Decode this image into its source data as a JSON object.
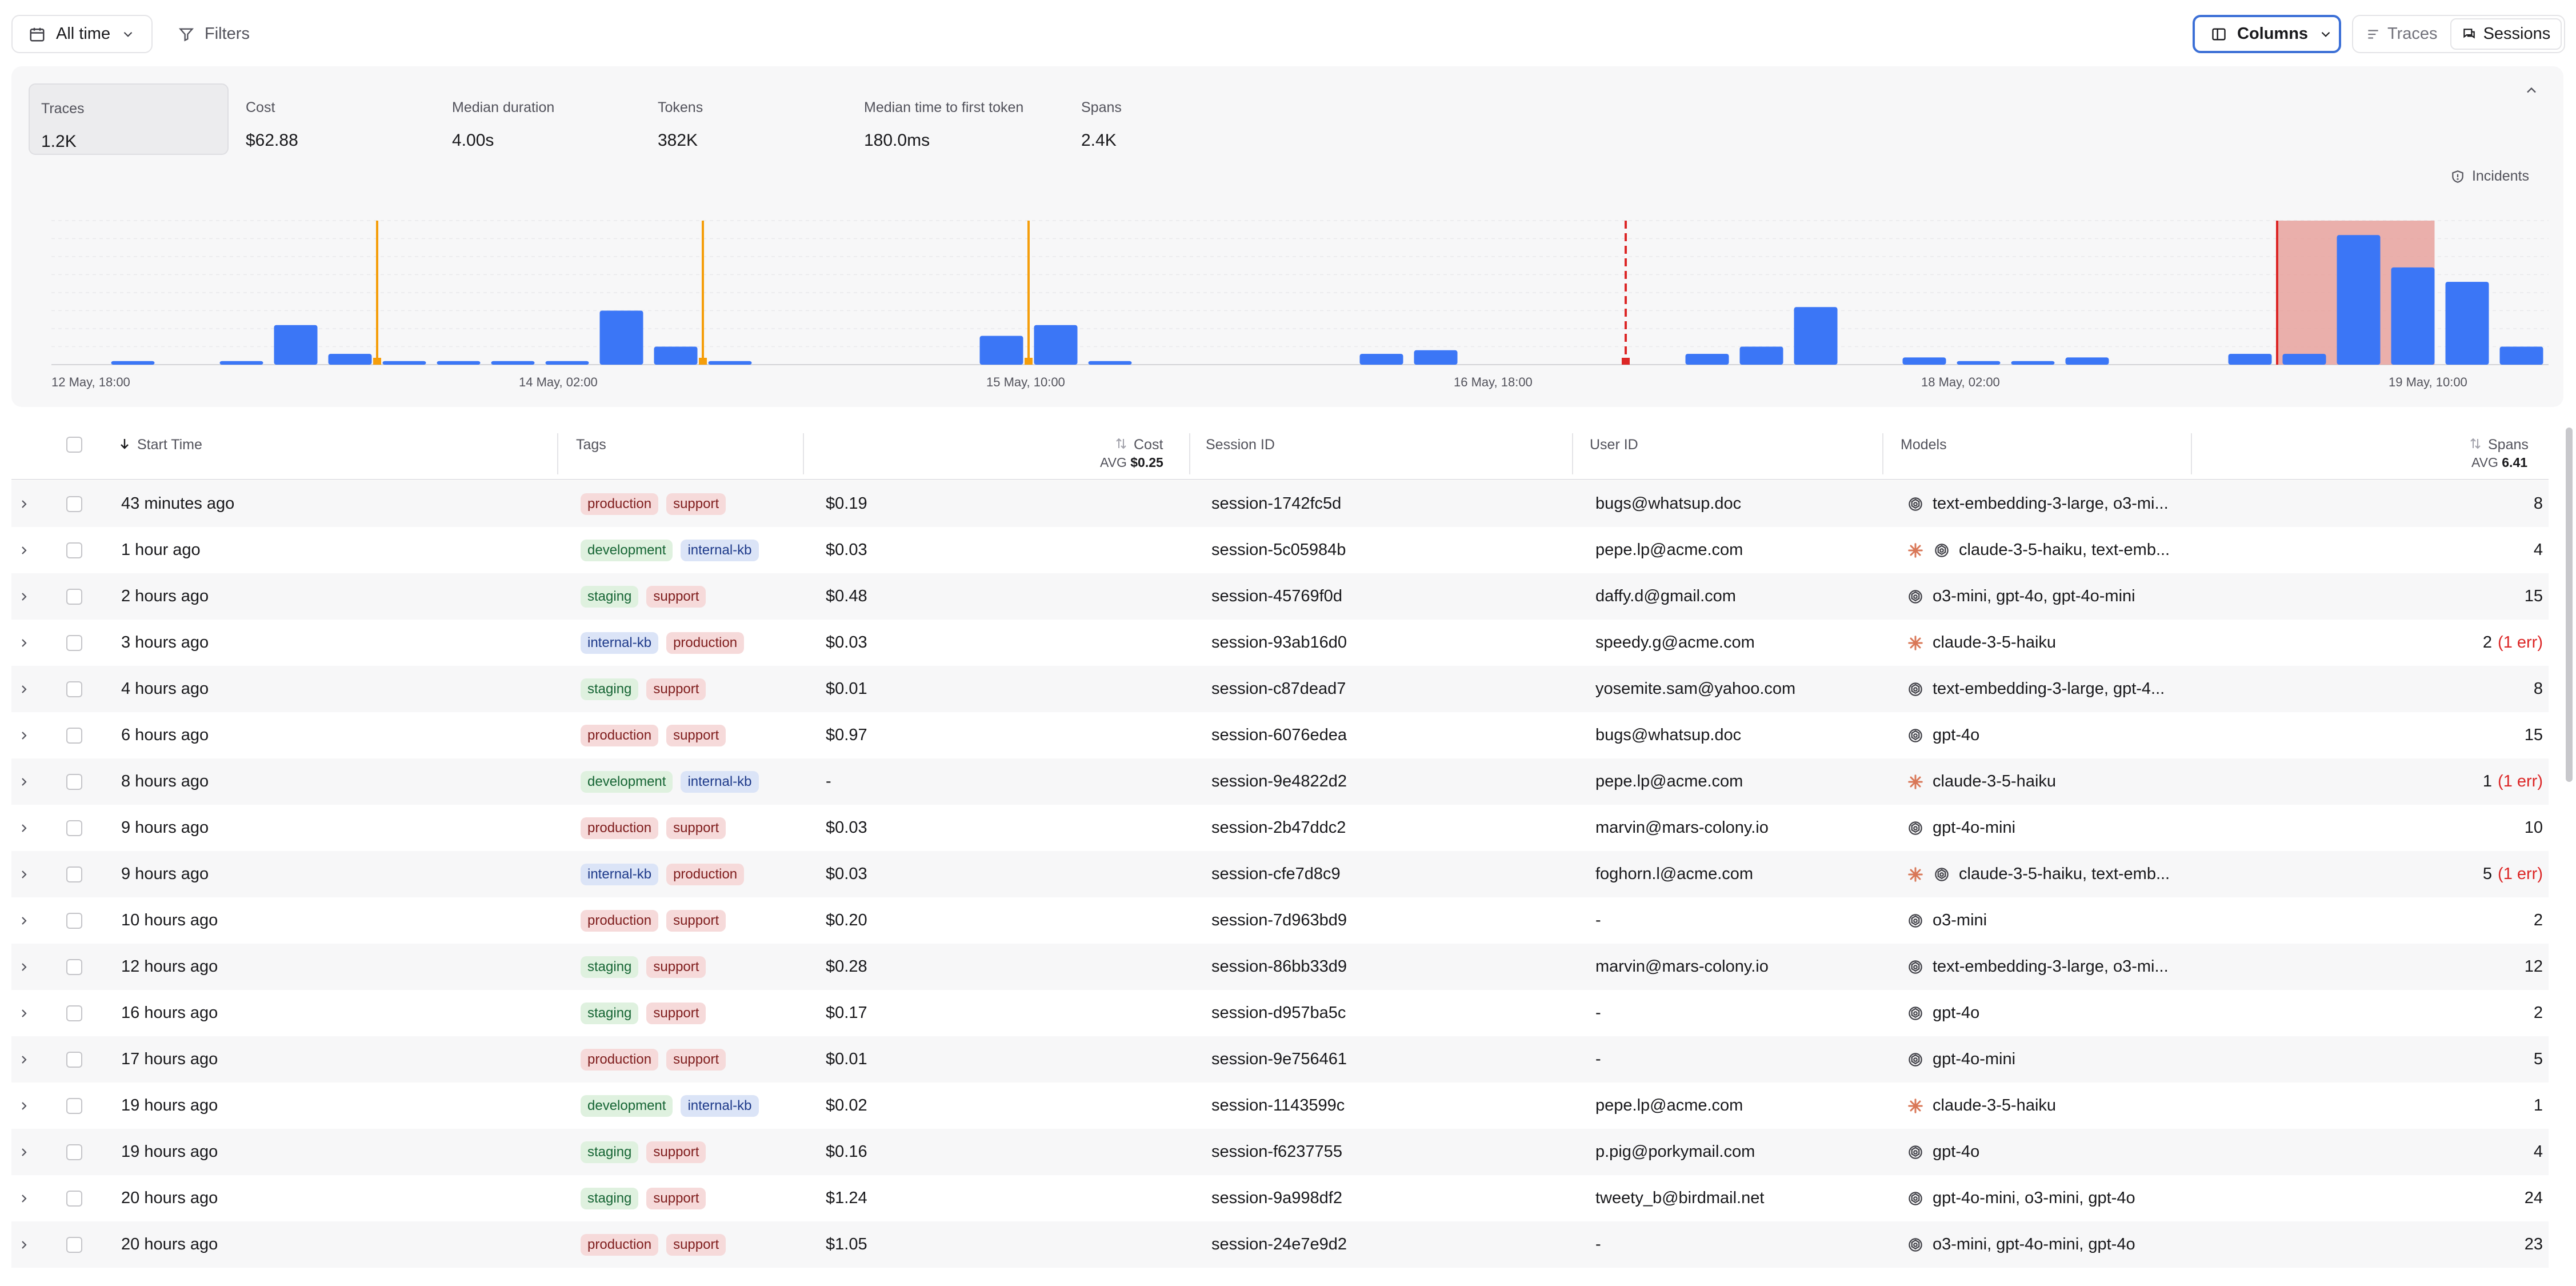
{
  "toolbar": {
    "time_range": "All time",
    "filters": "Filters",
    "columns": "Columns",
    "view_traces": "Traces",
    "view_sessions": "Sessions"
  },
  "metrics": [
    {
      "label": "Traces",
      "value": "1.2K"
    },
    {
      "label": "Cost",
      "value": "$62.88"
    },
    {
      "label": "Median duration",
      "value": "4.00s"
    },
    {
      "label": "Tokens",
      "value": "382K"
    },
    {
      "label": "Median time to first token",
      "value": "180.0ms"
    },
    {
      "label": "Spans",
      "value": "2.4K"
    }
  ],
  "incidents_label": "Incidents",
  "chart_data": {
    "type": "bar",
    "x_ticks": [
      "12 May, 18:00",
      "14 May, 02:00",
      "15 May, 10:00",
      "16 May, 18:00",
      "18 May, 02:00",
      "19 May, 10:00"
    ],
    "values": [
      0,
      1,
      0,
      1,
      11,
      3,
      1,
      1,
      1,
      1,
      15,
      5,
      1,
      0,
      0,
      0,
      0,
      8,
      11,
      1,
      0,
      0,
      0,
      0,
      3,
      4,
      0,
      0,
      0,
      0,
      3,
      5,
      16,
      0,
      2,
      1,
      1,
      2,
      0,
      0,
      3,
      3,
      36,
      27,
      23,
      5
    ],
    "ylim": [
      0,
      40
    ],
    "event_markers": [
      6,
      12,
      18
    ],
    "incident_marker": 29,
    "incident_region": [
      41,
      43
    ],
    "colors": {
      "bar": "#3b76f6",
      "marker": "#f59e0b",
      "incident": "#dc2626",
      "incident_region": "#e8a29d"
    }
  },
  "table": {
    "headers": {
      "start_time": "Start Time",
      "tags": "Tags",
      "cost": "Cost",
      "session_id": "Session ID",
      "user_id": "User ID",
      "models": "Models",
      "spans": "Spans"
    },
    "avg_label": "AVG",
    "cost_avg": "$0.25",
    "spans_avg": "6.41",
    "rows": [
      {
        "time": "43 minutes ago",
        "tags": [
          "production",
          "support"
        ],
        "cost": "$0.19",
        "session": "session-1742fc5d",
        "user": "bugs@whatsup.doc",
        "model_icons": [
          "openai"
        ],
        "models": "text-embedding-3-large, o3-mi...",
        "spans": "8",
        "err": ""
      },
      {
        "time": "1 hour ago",
        "tags": [
          "development",
          "internal-kb"
        ],
        "cost": "$0.03",
        "session": "session-5c05984b",
        "user": "pepe.lp@acme.com",
        "model_icons": [
          "anthropic",
          "openai"
        ],
        "models": "claude-3-5-haiku, text-emb...",
        "spans": "4",
        "err": ""
      },
      {
        "time": "2 hours ago",
        "tags": [
          "staging",
          "support"
        ],
        "cost": "$0.48",
        "session": "session-45769f0d",
        "user": "daffy.d@gmail.com",
        "model_icons": [
          "openai"
        ],
        "models": "o3-mini, gpt-4o, gpt-4o-mini",
        "spans": "15",
        "err": ""
      },
      {
        "time": "3 hours ago",
        "tags": [
          "internal-kb",
          "production"
        ],
        "cost": "$0.03",
        "session": "session-93ab16d0",
        "user": "speedy.g@acme.com",
        "model_icons": [
          "anthropic"
        ],
        "models": "claude-3-5-haiku",
        "spans": "2",
        "err": "(1 err)"
      },
      {
        "time": "4 hours ago",
        "tags": [
          "staging",
          "support"
        ],
        "cost": "$0.01",
        "session": "session-c87dead7",
        "user": "yosemite.sam@yahoo.com",
        "model_icons": [
          "openai"
        ],
        "models": "text-embedding-3-large, gpt-4...",
        "spans": "8",
        "err": ""
      },
      {
        "time": "6 hours ago",
        "tags": [
          "production",
          "support"
        ],
        "cost": "$0.97",
        "session": "session-6076edea",
        "user": "bugs@whatsup.doc",
        "model_icons": [
          "openai"
        ],
        "models": "gpt-4o",
        "spans": "15",
        "err": ""
      },
      {
        "time": "8 hours ago",
        "tags": [
          "development",
          "internal-kb"
        ],
        "cost": "-",
        "session": "session-9e4822d2",
        "user": "pepe.lp@acme.com",
        "model_icons": [
          "anthropic"
        ],
        "models": "claude-3-5-haiku",
        "spans": "1",
        "err": "(1 err)"
      },
      {
        "time": "9 hours ago",
        "tags": [
          "production",
          "support"
        ],
        "cost": "$0.03",
        "session": "session-2b47ddc2",
        "user": "marvin@mars-colony.io",
        "model_icons": [
          "openai"
        ],
        "models": "gpt-4o-mini",
        "spans": "10",
        "err": ""
      },
      {
        "time": "9 hours ago",
        "tags": [
          "internal-kb",
          "production"
        ],
        "cost": "$0.03",
        "session": "session-cfe7d8c9",
        "user": "foghorn.l@acme.com",
        "model_icons": [
          "anthropic",
          "openai"
        ],
        "models": "claude-3-5-haiku, text-emb...",
        "spans": "5",
        "err": "(1 err)"
      },
      {
        "time": "10 hours ago",
        "tags": [
          "production",
          "support"
        ],
        "cost": "$0.20",
        "session": "session-7d963bd9",
        "user": "-",
        "model_icons": [
          "openai"
        ],
        "models": "o3-mini",
        "spans": "2",
        "err": ""
      },
      {
        "time": "12 hours ago",
        "tags": [
          "staging",
          "support"
        ],
        "cost": "$0.28",
        "session": "session-86bb33d9",
        "user": "marvin@mars-colony.io",
        "model_icons": [
          "openai"
        ],
        "models": "text-embedding-3-large, o3-mi...",
        "spans": "12",
        "err": ""
      },
      {
        "time": "16 hours ago",
        "tags": [
          "staging",
          "support"
        ],
        "cost": "$0.17",
        "session": "session-d957ba5c",
        "user": "-",
        "model_icons": [
          "openai"
        ],
        "models": "gpt-4o",
        "spans": "2",
        "err": ""
      },
      {
        "time": "17 hours ago",
        "tags": [
          "production",
          "support"
        ],
        "cost": "$0.01",
        "session": "session-9e756461",
        "user": "-",
        "model_icons": [
          "openai"
        ],
        "models": "gpt-4o-mini",
        "spans": "5",
        "err": ""
      },
      {
        "time": "19 hours ago",
        "tags": [
          "development",
          "internal-kb"
        ],
        "cost": "$0.02",
        "session": "session-1143599c",
        "user": "pepe.lp@acme.com",
        "model_icons": [
          "anthropic"
        ],
        "models": "claude-3-5-haiku",
        "spans": "1",
        "err": ""
      },
      {
        "time": "19 hours ago",
        "tags": [
          "staging",
          "support"
        ],
        "cost": "$0.16",
        "session": "session-f6237755",
        "user": "p.pig@porkymail.com",
        "model_icons": [
          "openai"
        ],
        "models": "gpt-4o",
        "spans": "4",
        "err": ""
      },
      {
        "time": "20 hours ago",
        "tags": [
          "staging",
          "support"
        ],
        "cost": "$1.24",
        "session": "session-9a998df2",
        "user": "tweety_b@birdmail.net",
        "model_icons": [
          "openai"
        ],
        "models": "gpt-4o-mini, o3-mini, gpt-4o",
        "spans": "24",
        "err": ""
      },
      {
        "time": "20 hours ago",
        "tags": [
          "production",
          "support"
        ],
        "cost": "$1.05",
        "session": "session-24e7e9d2",
        "user": "-",
        "model_icons": [
          "openai"
        ],
        "models": "o3-mini, gpt-4o-mini, gpt-4o",
        "spans": "23",
        "err": ""
      }
    ]
  }
}
